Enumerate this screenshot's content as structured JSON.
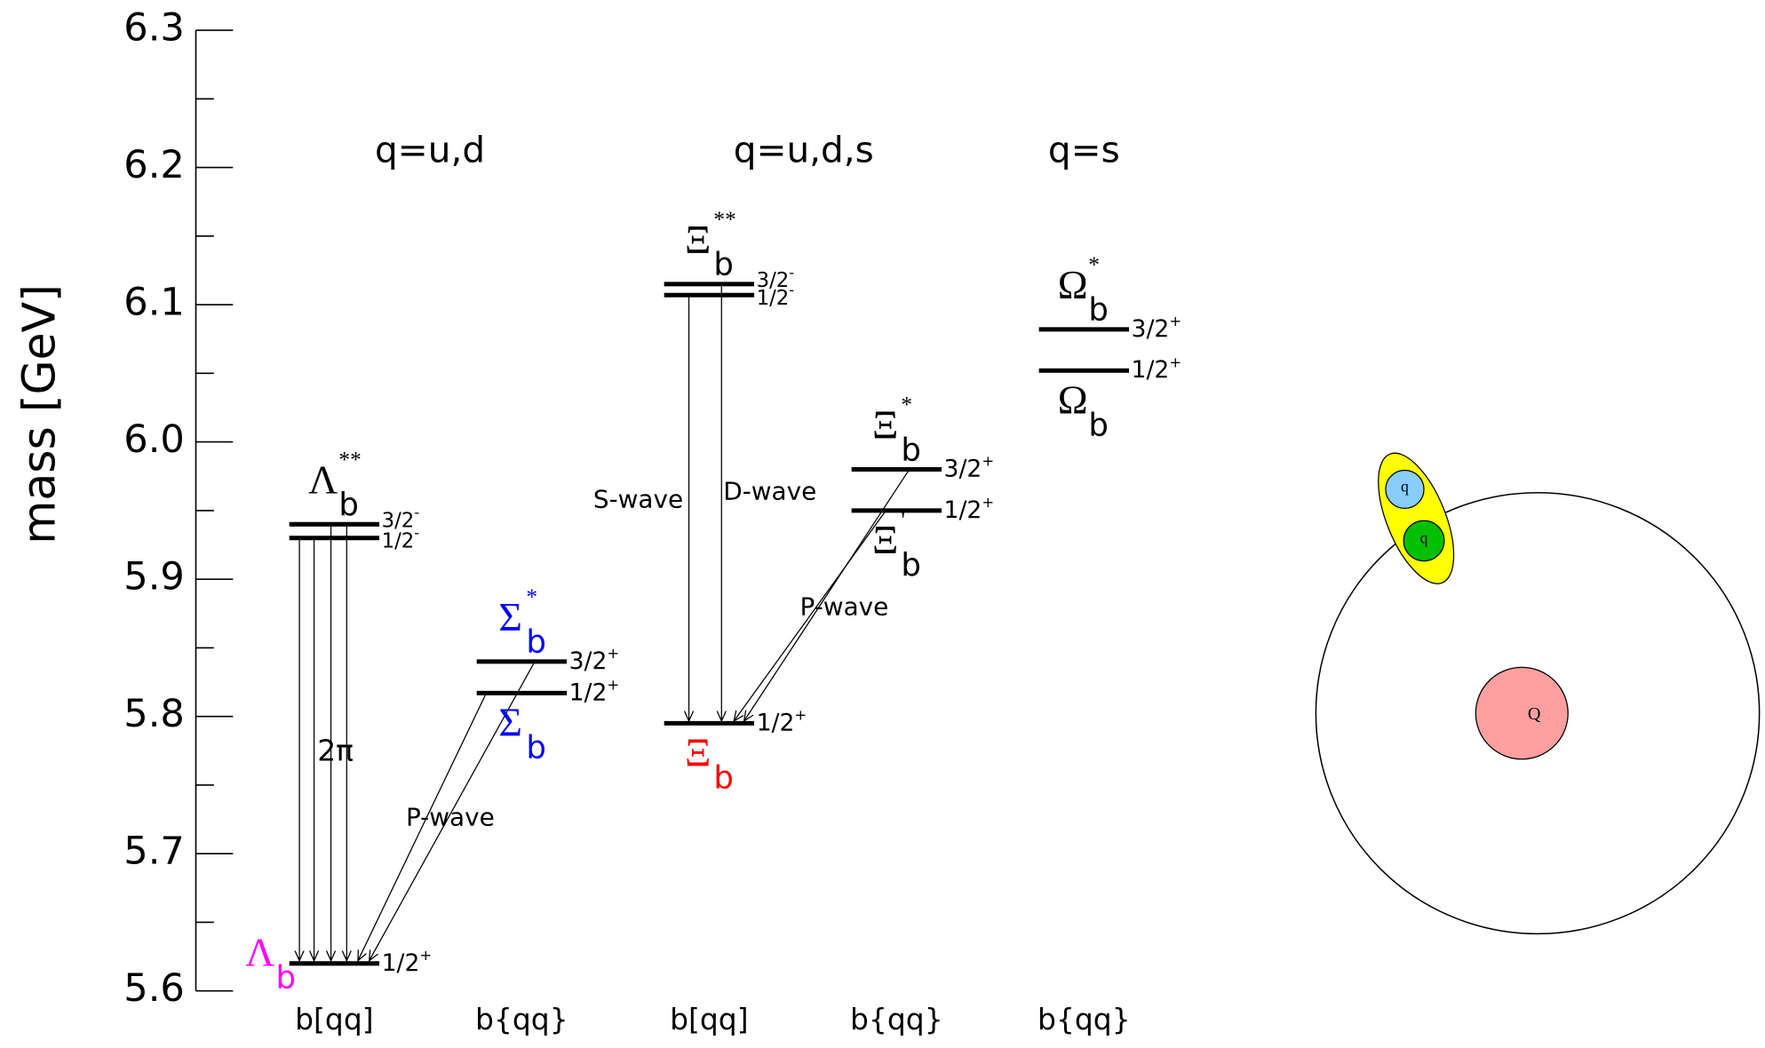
{
  "chart_data": {
    "type": "level",
    "y_label": "mass [GeV]",
    "ylim": [
      5.6,
      6.3
    ],
    "yticks": [
      5.6,
      5.7,
      5.8,
      5.9,
      {
        "value": 6,
        "label": "6.0"
      },
      6.1,
      6.2,
      6.3
    ],
    "yticks_minor": [
      5.65,
      5.75,
      5.85,
      5.95,
      6.05,
      6.15,
      6.25
    ],
    "groups": [
      "q=u,d",
      "q=u,d,s",
      "q=s"
    ],
    "annotations": [
      "2π",
      "P-wave",
      "S-wave",
      "D-wave",
      "P-wave"
    ],
    "columns": [
      {
        "label": "b[qq]",
        "states": [
          {
            "symbol": "Λ",
            "sub": "b",
            "color": "#ff00ff",
            "label_side": "left",
            "levels": [
              {
                "value": 5.62,
                "spin": "1/2",
                "parity": "+"
              }
            ]
          },
          {
            "symbol": "Λ",
            "sub": "b",
            "sup": "**",
            "color": "#000000",
            "label_side": "above",
            "levels": [
              {
                "value": 5.94,
                "spin": "3/2",
                "parity": "-"
              },
              {
                "value": 5.93,
                "spin": "1/2",
                "parity": "-"
              }
            ]
          }
        ]
      },
      {
        "label": "b{qq}",
        "states": [
          {
            "symbol": "Σ",
            "sub": "b",
            "sup": "*",
            "color": "#0000ff",
            "label_side": "above",
            "levels": [
              {
                "value": 5.84,
                "spin": "3/2",
                "parity": "+"
              }
            ]
          },
          {
            "symbol": "Σ",
            "sub": "b",
            "color": "#0000ff",
            "label_side": "below",
            "levels": [
              {
                "value": 5.817,
                "spin": "1/2",
                "parity": "+"
              }
            ]
          }
        ]
      },
      {
        "label": "b[qq]",
        "states": [
          {
            "symbol": "Ξ",
            "sub": "b",
            "color": "#ff0000",
            "label_side": "below",
            "levels": [
              {
                "value": 5.795,
                "spin": "1/2",
                "parity": "+"
              }
            ]
          },
          {
            "symbol": "Ξ",
            "sub": "b",
            "sup": "**",
            "color": "#000000",
            "label_side": "above",
            "levels": [
              {
                "value": 6.115,
                "spin": "3/2",
                "parity": "-"
              },
              {
                "value": 6.107,
                "spin": "1/2",
                "parity": "-"
              }
            ]
          }
        ]
      },
      {
        "label": "b{qq}",
        "states": [
          {
            "symbol": "Ξ",
            "sub": "b",
            "sup": "*",
            "color": "#000000",
            "label_side": "above",
            "levels": [
              {
                "value": 5.98,
                "spin": "3/2",
                "parity": "+"
              }
            ]
          },
          {
            "symbol": "Ξ",
            "sub": "b",
            "sup": "'",
            "color": "#000000",
            "label_side": "below",
            "levels": [
              {
                "value": 5.95,
                "spin": "1/2",
                "parity": "+"
              }
            ]
          }
        ]
      },
      {
        "label": "b{qq}",
        "states": [
          {
            "symbol": "Ω",
            "sub": "b",
            "sup": "*",
            "color": "#000000",
            "label_side": "above",
            "levels": [
              {
                "value": 6.082,
                "spin": "3/2",
                "parity": "+"
              }
            ]
          },
          {
            "symbol": "Ω",
            "sub": "b",
            "color": "#000000",
            "label_side": "below",
            "levels": [
              {
                "value": 6.052,
                "spin": "1/2",
                "parity": "+"
              }
            ]
          }
        ]
      }
    ]
  },
  "diagram": {
    "diquark": [
      "q",
      "q"
    ],
    "heavy_quark": "Q"
  }
}
